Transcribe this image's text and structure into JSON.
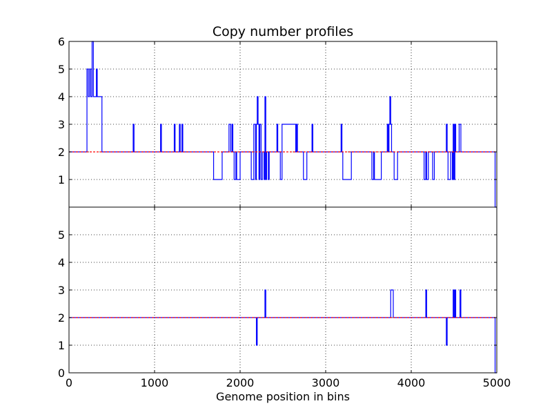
{
  "chart_data": {
    "type": "line",
    "title": "Copy number profiles",
    "xlabel": "Genome position in bins",
    "xlim": [
      0,
      5000
    ],
    "x_ticks": [
      0,
      1000,
      2000,
      3000,
      4000,
      5000
    ],
    "grid": true,
    "colors": {
      "profile": "#0000ff",
      "reference": "#ff0000",
      "grid": "#000000"
    },
    "subplots": [
      {
        "name": "",
        "ylim": [
          0,
          6
        ],
        "y_ticks": [
          1,
          2,
          3,
          4,
          5,
          6
        ],
        "series": [
          {
            "name": "",
            "color": "#0000ff",
            "segments": [
              [
                0,
                2
              ],
              [
                210,
                5
              ],
              [
                225,
                4
              ],
              [
                240,
                5
              ],
              [
                255,
                4
              ],
              [
                270,
                6
              ],
              [
                285,
                4
              ],
              [
                320,
                5
              ],
              [
                330,
                4
              ],
              [
                385,
                2
              ],
              [
                750,
                3
              ],
              [
                760,
                2
              ],
              [
                1070,
                3
              ],
              [
                1080,
                2
              ],
              [
                1230,
                3
              ],
              [
                1240,
                2
              ],
              [
                1290,
                3
              ],
              [
                1300,
                2
              ],
              [
                1320,
                3
              ],
              [
                1330,
                2
              ],
              [
                1690,
                1
              ],
              [
                1790,
                2
              ],
              [
                1870,
                3
              ],
              [
                1890,
                2
              ],
              [
                1905,
                3
              ],
              [
                1915,
                2
              ],
              [
                1930,
                1
              ],
              [
                1950,
                2
              ],
              [
                1960,
                1
              ],
              [
                2000,
                2
              ],
              [
                2130,
                1
              ],
              [
                2160,
                3
              ],
              [
                2180,
                1
              ],
              [
                2190,
                3
              ],
              [
                2200,
                4
              ],
              [
                2210,
                3
              ],
              [
                2220,
                1
              ],
              [
                2230,
                3
              ],
              [
                2245,
                1
              ],
              [
                2260,
                2
              ],
              [
                2280,
                1
              ],
              [
                2290,
                4
              ],
              [
                2300,
                1
              ],
              [
                2310,
                2
              ],
              [
                2330,
                1
              ],
              [
                2340,
                2
              ],
              [
                2430,
                3
              ],
              [
                2440,
                2
              ],
              [
                2470,
                1
              ],
              [
                2490,
                3
              ],
              [
                2650,
                2
              ],
              [
                2660,
                3
              ],
              [
                2670,
                2
              ],
              [
                2740,
                1
              ],
              [
                2780,
                2
              ],
              [
                2840,
                3
              ],
              [
                2850,
                2
              ],
              [
                3180,
                3
              ],
              [
                3190,
                2
              ],
              [
                3200,
                1
              ],
              [
                3300,
                2
              ],
              [
                3540,
                1
              ],
              [
                3560,
                2
              ],
              [
                3570,
                1
              ],
              [
                3650,
                2
              ],
              [
                3720,
                3
              ],
              [
                3730,
                2
              ],
              [
                3740,
                3
              ],
              [
                3750,
                4
              ],
              [
                3760,
                3
              ],
              [
                3770,
                2
              ],
              [
                3800,
                1
              ],
              [
                3840,
                2
              ],
              [
                4150,
                1
              ],
              [
                4170,
                2
              ],
              [
                4180,
                1
              ],
              [
                4200,
                2
              ],
              [
                4250,
                1
              ],
              [
                4270,
                2
              ],
              [
                4410,
                3
              ],
              [
                4420,
                2
              ],
              [
                4430,
                1
              ],
              [
                4460,
                2
              ],
              [
                4480,
                1
              ],
              [
                4490,
                3
              ],
              [
                4500,
                1
              ],
              [
                4510,
                3
              ],
              [
                4520,
                2
              ],
              [
                4560,
                3
              ],
              [
                4580,
                2
              ],
              [
                4980,
                0
              ]
            ],
            "x_end": 5000
          },
          {
            "name": "",
            "color": "#ff0000",
            "segments": [
              [
                0,
                2
              ]
            ],
            "x_end": 5000
          }
        ]
      },
      {
        "name": "",
        "ylim": [
          0,
          6
        ],
        "y_ticks": [
          0,
          1,
          2,
          3,
          4,
          5
        ],
        "series": [
          {
            "name": "",
            "color": "#0000ff",
            "segments": [
              [
                0,
                2
              ],
              [
                2190,
                1
              ],
              [
                2200,
                2
              ],
              [
                2290,
                3
              ],
              [
                2300,
                2
              ],
              [
                3760,
                3
              ],
              [
                3790,
                2
              ],
              [
                4170,
                3
              ],
              [
                4180,
                2
              ],
              [
                4410,
                1
              ],
              [
                4420,
                2
              ],
              [
                4490,
                3
              ],
              [
                4500,
                2
              ],
              [
                4510,
                3
              ],
              [
                4520,
                2
              ],
              [
                4570,
                3
              ],
              [
                4580,
                2
              ],
              [
                4980,
                0
              ]
            ],
            "x_end": 5000
          },
          {
            "name": "",
            "color": "#ff0000",
            "segments": [
              [
                0,
                2
              ]
            ],
            "x_end": 5000
          }
        ]
      }
    ]
  }
}
